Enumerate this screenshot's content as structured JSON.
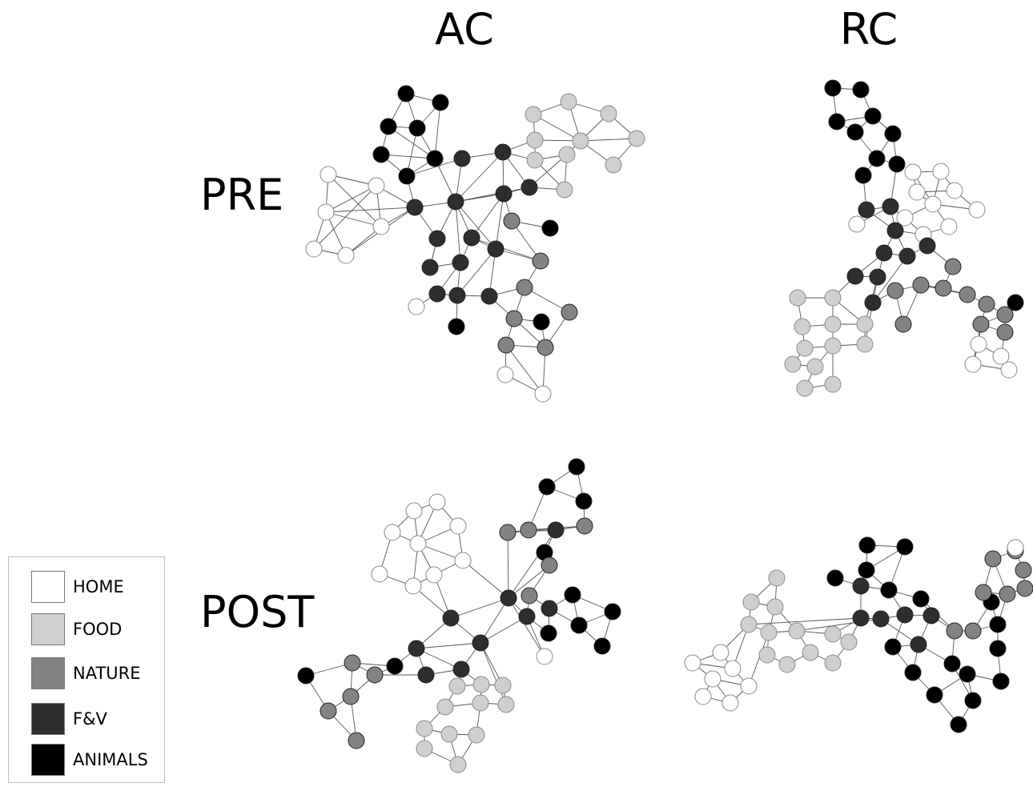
{
  "columns": {
    "ac": "AC",
    "rc": "RC"
  },
  "rows": {
    "pre": "PRE",
    "post": "POST"
  },
  "legend": [
    {
      "label": "HOME",
      "color": "#ffffff"
    },
    {
      "label": "FOOD",
      "color": "#cfcfcf"
    },
    {
      "label": "NATURE",
      "color": "#838383"
    },
    {
      "label": "F&V",
      "color": "#2e2e2e"
    },
    {
      "label": "ANIMALS",
      "color": "#000000"
    }
  ],
  "category_colors": {
    "H": "#ffffff",
    "Fo": "#cfcfcf",
    "N": "#838383",
    "V": "#2e2e2e",
    "A": "#000000"
  }
}
